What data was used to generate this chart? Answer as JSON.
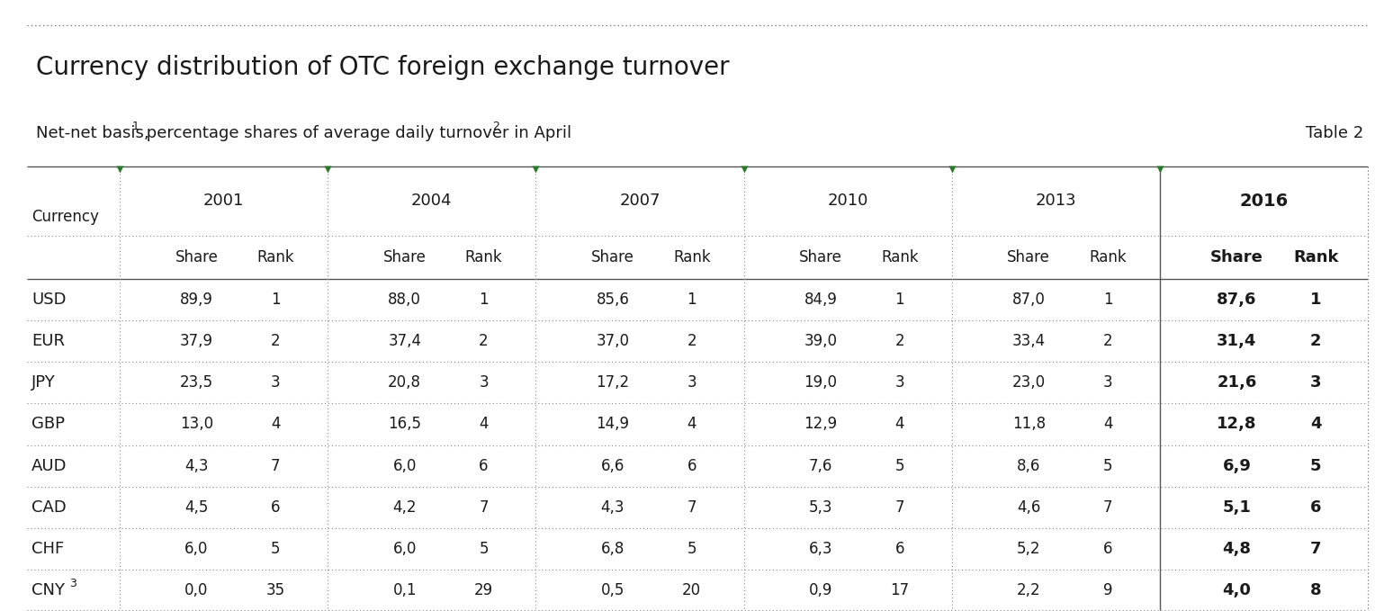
{
  "title": "Currency distribution of OTC foreign exchange turnover",
  "table_label": "Table 2",
  "years": [
    "2001",
    "2004",
    "2007",
    "2010",
    "2013",
    "2016"
  ],
  "currencies": [
    "USD",
    "EUR",
    "JPY",
    "GBP",
    "AUD",
    "CAD",
    "CHF",
    "CNY"
  ],
  "data": {
    "USD": [
      [
        "89,9",
        "1"
      ],
      [
        "88,0",
        "1"
      ],
      [
        "85,6",
        "1"
      ],
      [
        "84,9",
        "1"
      ],
      [
        "87,0",
        "1"
      ],
      [
        "87,6",
        "1"
      ]
    ],
    "EUR": [
      [
        "37,9",
        "2"
      ],
      [
        "37,4",
        "2"
      ],
      [
        "37,0",
        "2"
      ],
      [
        "39,0",
        "2"
      ],
      [
        "33,4",
        "2"
      ],
      [
        "31,4",
        "2"
      ]
    ],
    "JPY": [
      [
        "23,5",
        "3"
      ],
      [
        "20,8",
        "3"
      ],
      [
        "17,2",
        "3"
      ],
      [
        "19,0",
        "3"
      ],
      [
        "23,0",
        "3"
      ],
      [
        "21,6",
        "3"
      ]
    ],
    "GBP": [
      [
        "13,0",
        "4"
      ],
      [
        "16,5",
        "4"
      ],
      [
        "14,9",
        "4"
      ],
      [
        "12,9",
        "4"
      ],
      [
        "11,8",
        "4"
      ],
      [
        "12,8",
        "4"
      ]
    ],
    "AUD": [
      [
        "4,3",
        "7"
      ],
      [
        "6,0",
        "6"
      ],
      [
        "6,6",
        "6"
      ],
      [
        "7,6",
        "5"
      ],
      [
        "8,6",
        "5"
      ],
      [
        "6,9",
        "5"
      ]
    ],
    "CAD": [
      [
        "4,5",
        "6"
      ],
      [
        "4,2",
        "7"
      ],
      [
        "4,3",
        "7"
      ],
      [
        "5,3",
        "7"
      ],
      [
        "4,6",
        "7"
      ],
      [
        "5,1",
        "6"
      ]
    ],
    "CHF": [
      [
        "6,0",
        "5"
      ],
      [
        "6,0",
        "5"
      ],
      [
        "6,8",
        "5"
      ],
      [
        "6,3",
        "6"
      ],
      [
        "5,2",
        "6"
      ],
      [
        "4,8",
        "7"
      ]
    ],
    "CNY": [
      [
        "0,0",
        "35"
      ],
      [
        "0,1",
        "29"
      ],
      [
        "0,5",
        "20"
      ],
      [
        "0,9",
        "17"
      ],
      [
        "2,2",
        "9"
      ],
      [
        "4,0",
        "8"
      ]
    ]
  },
  "bg_color": "#ffffff",
  "text_color": "#1a1a1a",
  "green_color": "#2a7a2a",
  "dotted_color": "#888888",
  "solid_color": "#555555"
}
